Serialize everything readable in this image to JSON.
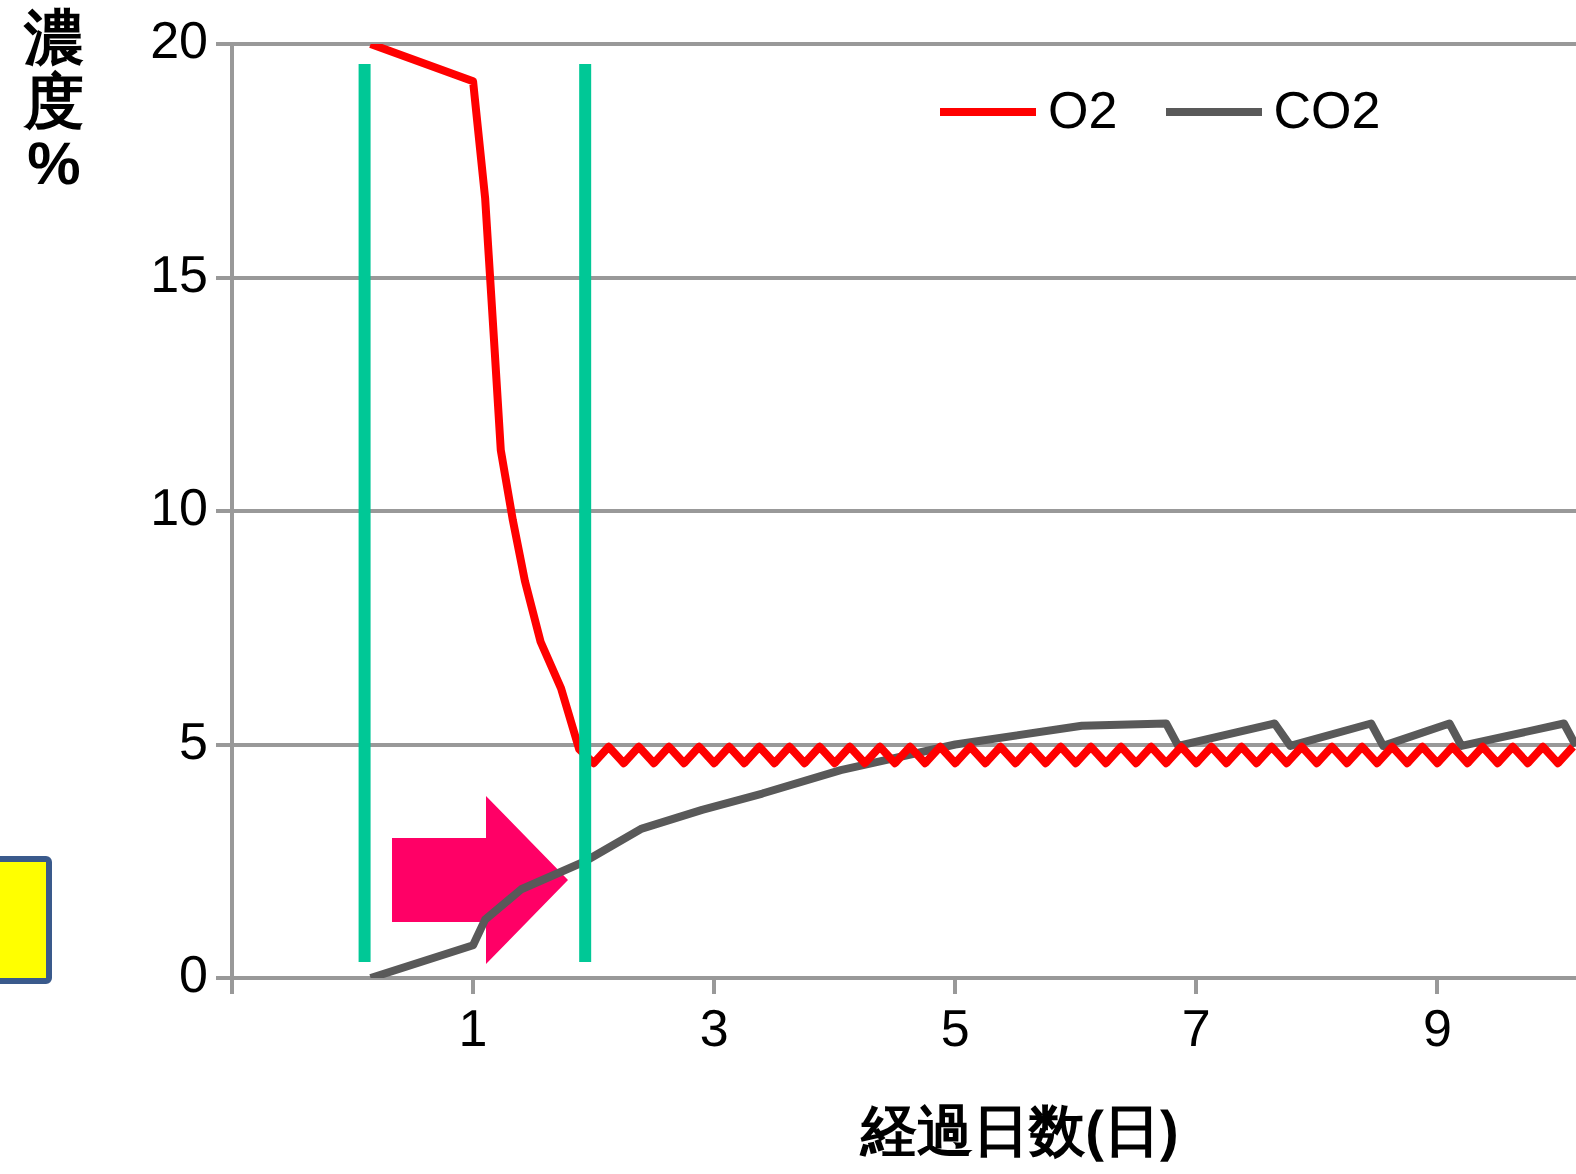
{
  "chart_data": {
    "type": "line",
    "xlabel": "経過日数(日)",
    "ylabel": "濃度%",
    "xlim": [
      -1,
      10.15
    ],
    "xticks": [
      {
        "value": -1,
        "label": null
      },
      1,
      3,
      5,
      7,
      9
    ],
    "ylim": [
      0,
      20
    ],
    "yticks": [
      0,
      5,
      10,
      15,
      20
    ],
    "grid": "y",
    "legend": "top right",
    "marker": "none",
    "line_style": "solid",
    "ref_lines": [
      {
        "axis": "x",
        "value": 0.1,
        "label": null,
        "color": "#00c896"
      },
      {
        "axis": "x",
        "value": 1.93,
        "label": null,
        "color": "#00c896"
      }
    ],
    "series": [
      {
        "name": "O2",
        "color": "#ff0000",
        "x": [
          0.15,
          1,
          1.1,
          1.18,
          1.23,
          1.33,
          1.43,
          1.56,
          1.73,
          1.88,
          2,
          2.125,
          2.25,
          2.375,
          2.5,
          2.625,
          2.75,
          2.875,
          3,
          3.125,
          3.25,
          3.375,
          3.5,
          3.625,
          3.75,
          3.875,
          4,
          4.125,
          4.25,
          4.375,
          4.5,
          4.625,
          4.75,
          4.875,
          5,
          5.125,
          5.25,
          5.375,
          5.5,
          5.625,
          5.75,
          5.875,
          6,
          6.125,
          6.25,
          6.375,
          6.5,
          6.625,
          6.75,
          6.875,
          7,
          7.125,
          7.25,
          7.375,
          7.5,
          7.625,
          7.75,
          7.875,
          8,
          8.125,
          8.25,
          8.375,
          8.5,
          8.625,
          8.75,
          8.875,
          9,
          9.125,
          9.25,
          9.375,
          9.5,
          9.625,
          9.75,
          9.875,
          10,
          10.125
        ],
        "values": [
          20,
          19.2,
          16.7,
          13.4,
          11.3,
          9.8,
          8.5,
          7.2,
          6.2,
          4.9,
          4.6,
          4.95,
          4.6,
          4.95,
          4.6,
          4.95,
          4.6,
          4.95,
          4.6,
          4.95,
          4.6,
          4.95,
          4.6,
          4.95,
          4.6,
          4.95,
          4.6,
          4.95,
          4.6,
          4.95,
          4.6,
          4.95,
          4.6,
          4.95,
          4.6,
          4.95,
          4.6,
          4.95,
          4.6,
          4.95,
          4.6,
          4.95,
          4.6,
          4.95,
          4.6,
          4.95,
          4.6,
          4.95,
          4.6,
          4.95,
          4.6,
          4.95,
          4.6,
          4.95,
          4.6,
          4.95,
          4.6,
          4.95,
          4.6,
          4.95,
          4.6,
          4.95,
          4.6,
          4.95,
          4.6,
          4.95,
          4.6,
          4.95,
          4.6,
          4.95,
          4.6,
          4.95,
          4.6,
          4.95,
          4.6,
          4.95
        ]
      },
      {
        "name": "CO2",
        "color": "#595959",
        "x": [
          0.15,
          1,
          1.1,
          1.4,
          1.93,
          2.4,
          2.9,
          3.4,
          4.05,
          5,
          6.05,
          6.75,
          6.85,
          7.65,
          7.78,
          8.45,
          8.55,
          9.1,
          9.2,
          10.05,
          10.15
        ],
        "values": [
          0,
          0.7,
          1.25,
          1.9,
          2.5,
          3.2,
          3.6,
          3.95,
          4.45,
          5,
          5.4,
          5.45,
          4.97,
          5.45,
          4.97,
          5.45,
          4.97,
          5.45,
          4.97,
          5.45,
          4.97
        ]
      }
    ]
  }
}
